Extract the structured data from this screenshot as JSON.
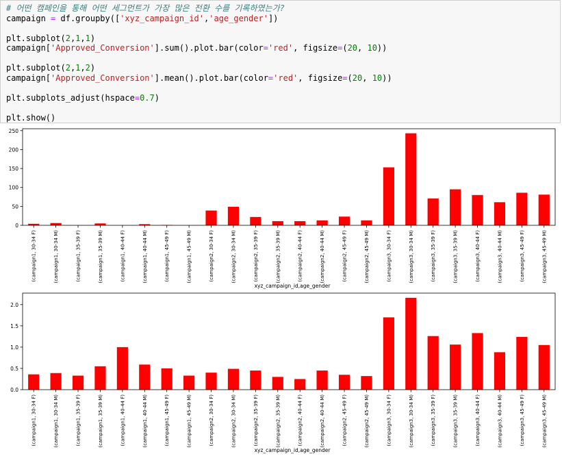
{
  "code": {
    "lines": [
      {
        "parts": [
          {
            "t": "# 어떤 캠페인을 통해 어떤 세그먼트가 가장 많은 전환 수를 기록하였는가?",
            "c": "comment"
          }
        ]
      },
      {
        "parts": [
          {
            "t": "campaign ",
            "c": ""
          },
          {
            "t": "=",
            "c": "op"
          },
          {
            "t": " df.groupby([",
            "c": ""
          },
          {
            "t": "'xyz_campaign_id'",
            "c": "str"
          },
          {
            "t": ",",
            "c": ""
          },
          {
            "t": "'age_gender'",
            "c": "str"
          },
          {
            "t": "])",
            "c": ""
          }
        ]
      },
      {
        "parts": []
      },
      {
        "parts": [
          {
            "t": "plt.subplot(",
            "c": ""
          },
          {
            "t": "2",
            "c": "num"
          },
          {
            "t": ",",
            "c": ""
          },
          {
            "t": "1",
            "c": "num"
          },
          {
            "t": ",",
            "c": ""
          },
          {
            "t": "1",
            "c": "num"
          },
          {
            "t": ")",
            "c": ""
          }
        ]
      },
      {
        "parts": [
          {
            "t": "campaign[",
            "c": ""
          },
          {
            "t": "'Approved_Conversion'",
            "c": "str"
          },
          {
            "t": "].sum().plot.bar(color",
            "c": ""
          },
          {
            "t": "=",
            "c": "op"
          },
          {
            "t": "'red'",
            "c": "str"
          },
          {
            "t": ", figsize",
            "c": ""
          },
          {
            "t": "=",
            "c": "op"
          },
          {
            "t": "(",
            "c": ""
          },
          {
            "t": "20",
            "c": "num"
          },
          {
            "t": ", ",
            "c": ""
          },
          {
            "t": "10",
            "c": "num"
          },
          {
            "t": "))",
            "c": ""
          }
        ]
      },
      {
        "parts": []
      },
      {
        "parts": [
          {
            "t": "plt.subplot(",
            "c": ""
          },
          {
            "t": "2",
            "c": "num"
          },
          {
            "t": ",",
            "c": ""
          },
          {
            "t": "1",
            "c": "num"
          },
          {
            "t": ",",
            "c": ""
          },
          {
            "t": "2",
            "c": "num"
          },
          {
            "t": ")",
            "c": ""
          }
        ]
      },
      {
        "parts": [
          {
            "t": "campaign[",
            "c": ""
          },
          {
            "t": "'Approved_Conversion'",
            "c": "str"
          },
          {
            "t": "].mean().plot.bar(color",
            "c": ""
          },
          {
            "t": "=",
            "c": "op"
          },
          {
            "t": "'red'",
            "c": "str"
          },
          {
            "t": ", figsize",
            "c": ""
          },
          {
            "t": "=",
            "c": "op"
          },
          {
            "t": "(",
            "c": ""
          },
          {
            "t": "20",
            "c": "num"
          },
          {
            "t": ", ",
            "c": ""
          },
          {
            "t": "10",
            "c": "num"
          },
          {
            "t": "))",
            "c": ""
          }
        ]
      },
      {
        "parts": []
      },
      {
        "parts": [
          {
            "t": "plt.subplots_adjust(hspace",
            "c": ""
          },
          {
            "t": "=",
            "c": "op"
          },
          {
            "t": "0.7",
            "c": "num"
          },
          {
            "t": ")",
            "c": ""
          }
        ]
      },
      {
        "parts": []
      },
      {
        "parts": [
          {
            "t": "plt.show()",
            "c": ""
          }
        ]
      }
    ]
  },
  "colors": {
    "bar": "#ff0000",
    "comment": "#408080",
    "string": "#ba2121",
    "number": "#008000",
    "operator": "#aa22ff"
  },
  "chart_data": [
    {
      "type": "bar",
      "categories": [
        "(campaign1, 30-34 F)",
        "(campaign1, 30-34 M)",
        "(campaign1, 35-39 F)",
        "(campaign1, 35-39 M)",
        "(campaign1, 40-44 F)",
        "(campaign1, 40-44 M)",
        "(campaign1, 45-49 F)",
        "(campaign1, 45-49 M)",
        "(campaign2, 30-34 F)",
        "(campaign2, 30-34 M)",
        "(campaign2, 35-39 F)",
        "(campaign2, 35-39 M)",
        "(campaign2, 40-44 F)",
        "(campaign2, 40-44 M)",
        "(campaign2, 45-49 F)",
        "(campaign2, 45-49 M)",
        "(campaign3, 30-34 F)",
        "(campaign3, 30-34 M)",
        "(campaign3, 35-39 F)",
        "(campaign3, 35-39 M)",
        "(campaign3, 40-44 F)",
        "(campaign3, 40-44 M)",
        "(campaign3, 45-49 F)",
        "(campaign3, 45-49 M)"
      ],
      "values": [
        4,
        6,
        0,
        5,
        0,
        3,
        1,
        0,
        39,
        49,
        22,
        11,
        11,
        13,
        23,
        13,
        153,
        243,
        71,
        95,
        80,
        61,
        86,
        81
      ],
      "ylim": [
        0,
        255
      ],
      "yticks": [
        0,
        50,
        100,
        150,
        200,
        250
      ],
      "xlabel": "xyz_campaign_id,age_gender",
      "ylabel": "",
      "grid": false,
      "legend": "none"
    },
    {
      "type": "bar",
      "categories": [
        "(campaign1, 30-34 F)",
        "(campaign1, 30-34 M)",
        "(campaign1, 35-39 F)",
        "(campaign1, 35-39 M)",
        "(campaign1, 40-44 F)",
        "(campaign1, 40-44 M)",
        "(campaign1, 45-49 F)",
        "(campaign1, 45-49 M)",
        "(campaign2, 30-34 F)",
        "(campaign2, 30-34 M)",
        "(campaign2, 35-39 F)",
        "(campaign2, 35-39 M)",
        "(campaign2, 40-44 F)",
        "(campaign2, 40-44 M)",
        "(campaign2, 45-49 F)",
        "(campaign2, 45-49 M)",
        "(campaign3, 30-34 F)",
        "(campaign3, 30-34 M)",
        "(campaign3, 35-39 F)",
        "(campaign3, 35-39 M)",
        "(campaign3, 40-44 F)",
        "(campaign3, 40-44 M)",
        "(campaign3, 45-49 F)",
        "(campaign3, 45-49 M)"
      ],
      "values": [
        0.36,
        0.39,
        0.33,
        0.55,
        1.0,
        0.59,
        0.5,
        0.33,
        0.4,
        0.49,
        0.45,
        0.3,
        0.25,
        0.45,
        0.35,
        0.32,
        1.7,
        2.16,
        1.26,
        1.06,
        1.33,
        0.88,
        1.24,
        1.05
      ],
      "ylim": [
        0,
        2.27
      ],
      "yticks": [
        0.0,
        0.5,
        1.0,
        1.5,
        2.0
      ],
      "ytick_labels": [
        "0.0",
        "0.5",
        "1.0",
        "1.5",
        "2.0"
      ],
      "xlabel": "xyz_campaign_id,age_gender",
      "ylabel": "",
      "grid": false,
      "legend": "none"
    }
  ]
}
